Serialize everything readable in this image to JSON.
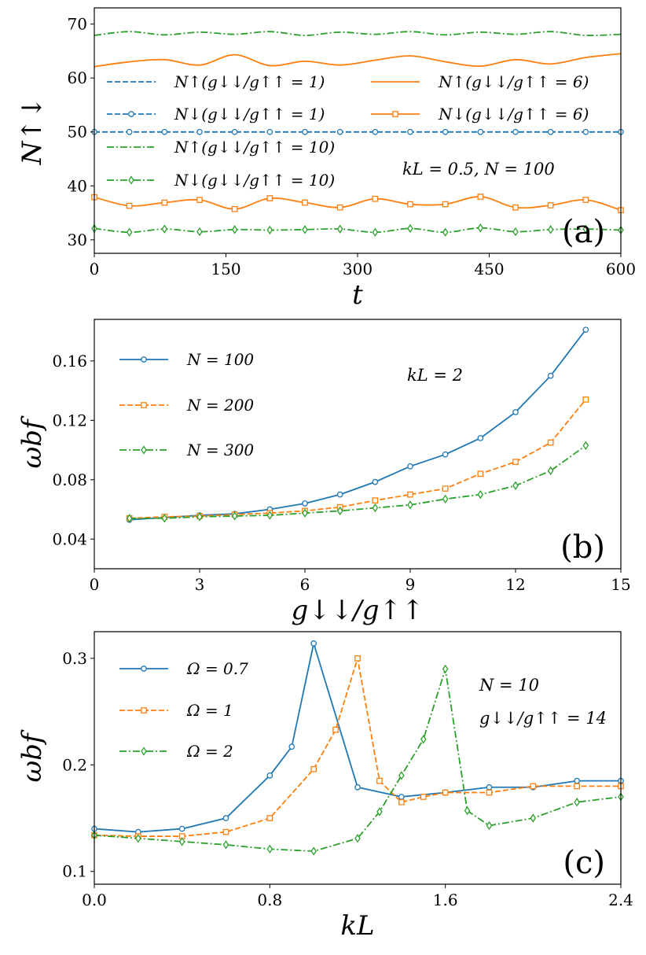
{
  "chart_data": [
    {
      "type": "line",
      "panel_label": "(a)",
      "xlabel": "t",
      "ylabel": "N↑↓",
      "xlim": [
        0,
        600
      ],
      "ylim": [
        27.5,
        73
      ],
      "xticks": [
        "0",
        "150",
        "300",
        "450",
        "600"
      ],
      "yticks": [
        "30",
        "40",
        "50",
        "60",
        "70"
      ],
      "annotation": "kL = 0.5, N = 100",
      "legend_position": "upper-left (two columns)",
      "x": [
        0,
        40,
        80,
        120,
        160,
        200,
        240,
        280,
        320,
        360,
        400,
        440,
        480,
        520,
        560,
        600
      ],
      "series": [
        {
          "name": "N↑(g↓↓/g↑↑ = 1)",
          "style": "dashed",
          "color": "#1f77b4",
          "marker": "none",
          "values": [
            50,
            50,
            50,
            50,
            50,
            50,
            50,
            50,
            50,
            50,
            50,
            50,
            50,
            50,
            50,
            50
          ]
        },
        {
          "name": "N↓(g↓↓/g↑↑ = 1)",
          "style": "dashed",
          "color": "#1f77b4",
          "marker": "circle",
          "values": [
            50,
            50,
            50,
            50,
            50,
            50,
            50,
            50,
            50,
            50,
            50,
            50,
            50,
            50,
            50,
            50
          ]
        },
        {
          "name": "N↑(g↓↓/g↑↑ = 10)",
          "style": "dashdot",
          "color": "#2ca02c",
          "marker": "none",
          "values": [
            67.9,
            68.6,
            68.0,
            68.5,
            68.1,
            68.6,
            67.9,
            68.5,
            68.1,
            68.6,
            68.0,
            68.5,
            68.1,
            68.6,
            67.9,
            68.1
          ]
        },
        {
          "name": "N↓(g↓↓/g↑↑ = 10)",
          "style": "dashdot",
          "color": "#2ca02c",
          "marker": "diamond",
          "values": [
            32.1,
            31.4,
            32.0,
            31.5,
            31.9,
            31.8,
            31.9,
            32.0,
            31.4,
            32.1,
            31.4,
            32.2,
            31.5,
            31.9,
            32.0,
            31.8
          ]
        },
        {
          "name": "N↑(g↓↓/g↑↑ = 6)",
          "style": "solid",
          "color": "#ff7f0e",
          "marker": "none",
          "values": [
            62.1,
            63.0,
            63.4,
            62.4,
            64.3,
            62.3,
            63.1,
            62.4,
            63.3,
            64.1,
            63.0,
            62.2,
            63.4,
            62.6,
            63.8,
            64.5
          ]
        },
        {
          "name": "N↓(g↓↓/g↑↑ = 6)",
          "style": "solid",
          "color": "#ff7f0e",
          "marker": "square",
          "values": [
            37.9,
            36.3,
            36.9,
            37.4,
            35.7,
            37.7,
            36.9,
            36.0,
            37.6,
            36.6,
            36.6,
            38.0,
            36.0,
            36.4,
            37.4,
            35.5
          ]
        }
      ]
    },
    {
      "type": "line",
      "panel_label": "(b)",
      "xlabel": "g↓↓/g↑↑",
      "ylabel": "ωbf",
      "xlim": [
        0,
        15
      ],
      "ylim": [
        0.02,
        0.188
      ],
      "xticks": [
        "0",
        "3",
        "6",
        "9",
        "12",
        "15"
      ],
      "yticks": [
        "0.04",
        "0.08",
        "0.12",
        "0.16"
      ],
      "annotation": "kL = 2",
      "legend_position": "upper-left",
      "x": [
        1,
        2,
        3,
        4,
        5,
        6,
        7,
        8,
        9,
        10,
        11,
        12,
        13,
        14
      ],
      "series": [
        {
          "name": "N = 100",
          "style": "solid",
          "color": "#1f77b4",
          "marker": "circle",
          "values": [
            0.053,
            0.0545,
            0.056,
            0.057,
            0.06,
            0.064,
            0.07,
            0.0785,
            0.089,
            0.097,
            0.108,
            0.1255,
            0.15,
            0.181
          ]
        },
        {
          "name": "N = 200",
          "style": "dashed",
          "color": "#ff7f0e",
          "marker": "square",
          "values": [
            0.054,
            0.055,
            0.0555,
            0.0565,
            0.0575,
            0.059,
            0.0615,
            0.066,
            0.07,
            0.074,
            0.084,
            0.092,
            0.105,
            0.134
          ]
        },
        {
          "name": "N = 300",
          "style": "dashdot",
          "color": "#2ca02c",
          "marker": "diamond",
          "values": [
            0.054,
            0.054,
            0.055,
            0.0555,
            0.056,
            0.0575,
            0.059,
            0.061,
            0.063,
            0.067,
            0.07,
            0.076,
            0.086,
            0.103
          ]
        }
      ]
    },
    {
      "type": "line",
      "panel_label": "(c)",
      "xlabel": "kL",
      "ylabel": "ωbf",
      "xlim": [
        0,
        2.4
      ],
      "ylim": [
        0.088,
        0.325
      ],
      "xticks": [
        "0.0",
        "0.8",
        "1.6",
        "2.4"
      ],
      "yticks": [
        "0.1",
        "0.2",
        "0.3"
      ],
      "annotation": [
        "N = 10",
        "g↓↓/g↑↑ = 14"
      ],
      "legend_position": "upper-left",
      "series": [
        {
          "name": "Ω = 0.7",
          "style": "solid",
          "color": "#1f77b4",
          "marker": "circle",
          "x": [
            0,
            0.2,
            0.4,
            0.6,
            0.8,
            0.9,
            1.0,
            1.2,
            1.4,
            1.6,
            1.8,
            2.0,
            2.2,
            2.4
          ],
          "values": [
            0.14,
            0.137,
            0.14,
            0.15,
            0.19,
            0.217,
            0.314,
            0.179,
            0.17,
            0.174,
            0.179,
            0.179,
            0.185,
            0.185
          ]
        },
        {
          "name": "Ω = 1",
          "style": "dashed",
          "color": "#ff7f0e",
          "marker": "square",
          "x": [
            0,
            0.2,
            0.4,
            0.6,
            0.8,
            1.0,
            1.1,
            1.2,
            1.3,
            1.4,
            1.5,
            1.6,
            1.8,
            2.0,
            2.2,
            2.4
          ],
          "values": [
            0.134,
            0.133,
            0.133,
            0.137,
            0.15,
            0.196,
            0.233,
            0.3,
            0.185,
            0.165,
            0.17,
            0.174,
            0.174,
            0.18,
            0.18,
            0.18
          ]
        },
        {
          "name": "Ω = 2",
          "style": "dashdot",
          "color": "#2ca02c",
          "marker": "diamond",
          "x": [
            0,
            0.2,
            0.4,
            0.6,
            0.8,
            1.0,
            1.2,
            1.3,
            1.4,
            1.5,
            1.6,
            1.7,
            1.8,
            2.0,
            2.2,
            2.4
          ],
          "values": [
            0.134,
            0.131,
            0.128,
            0.125,
            0.121,
            0.119,
            0.131,
            0.156,
            0.19,
            0.224,
            0.29,
            0.157,
            0.143,
            0.15,
            0.165,
            0.17
          ]
        }
      ]
    }
  ]
}
